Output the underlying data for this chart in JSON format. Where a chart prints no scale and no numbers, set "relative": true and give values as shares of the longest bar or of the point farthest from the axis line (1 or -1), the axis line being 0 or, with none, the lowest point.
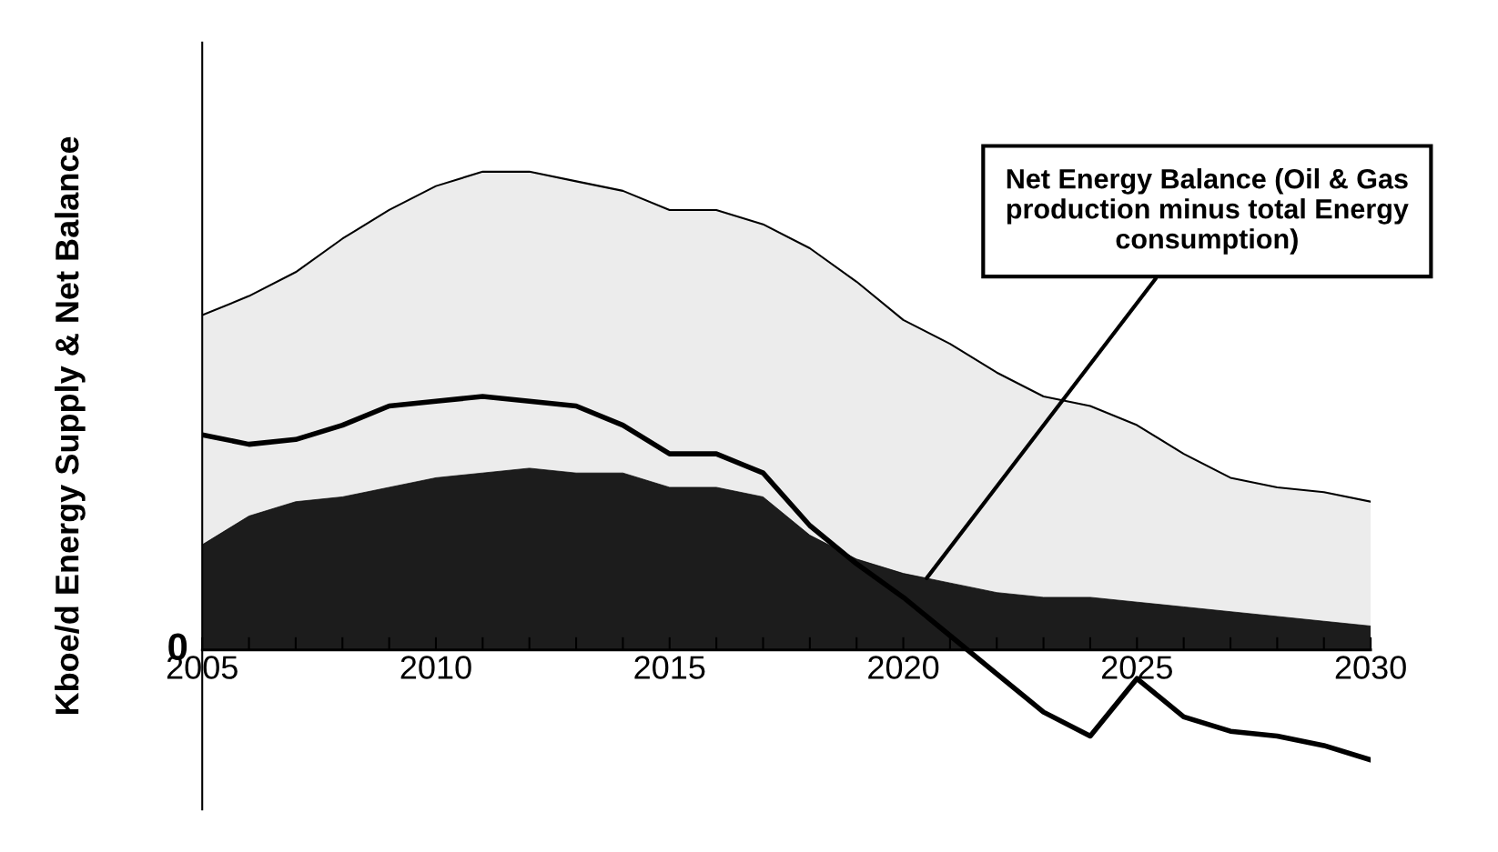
{
  "chart_data": {
    "type": "area",
    "relative": true,
    "ylabel": "Kboe/d Energy Supply & Net Balance",
    "x": [
      2005,
      2006,
      2007,
      2008,
      2009,
      2010,
      2011,
      2012,
      2013,
      2014,
      2015,
      2016,
      2017,
      2018,
      2019,
      2020,
      2021,
      2022,
      2023,
      2024,
      2025,
      2026,
      2027,
      2028,
      2029,
      2030
    ],
    "xlim": [
      2005,
      2030
    ],
    "xticks": [
      2005,
      2010,
      2015,
      2020,
      2025,
      2030
    ],
    "series": [
      {
        "color": "#ececec",
        "values": [
          0.7,
          0.74,
          0.79,
          0.86,
          0.92,
          0.97,
          1.0,
          1.0,
          0.98,
          0.96,
          0.92,
          0.92,
          0.89,
          0.84,
          0.77,
          0.69,
          0.64,
          0.58,
          0.53,
          0.51,
          0.47,
          0.41,
          0.36,
          0.34,
          0.33,
          0.31
        ]
      },
      {
        "color": "#1c1c1c",
        "values": [
          0.22,
          0.28,
          0.31,
          0.32,
          0.34,
          0.36,
          0.37,
          0.38,
          0.37,
          0.37,
          0.34,
          0.34,
          0.32,
          0.24,
          0.19,
          0.16,
          0.14,
          0.12,
          0.11,
          0.11,
          0.1,
          0.09,
          0.08,
          0.07,
          0.06,
          0.05
        ]
      },
      {
        "type": "line",
        "color": "#000000",
        "values": [
          0.45,
          0.43,
          0.44,
          0.47,
          0.51,
          0.52,
          0.53,
          0.52,
          0.51,
          0.47,
          0.41,
          0.41,
          0.37,
          0.26,
          0.18,
          0.11,
          0.03,
          -0.05,
          -0.13,
          -0.18,
          -0.06,
          -0.14,
          -0.17,
          -0.18,
          -0.2,
          -0.23
        ]
      }
    ],
    "annotations": [
      "0",
      {
        "text": "Net Energy Balance (Oil & Gas production minus total Energy consumption)",
        "x": 2020.5,
        "y": 0.15
      }
    ],
    "grid": false,
    "legend": false
  }
}
